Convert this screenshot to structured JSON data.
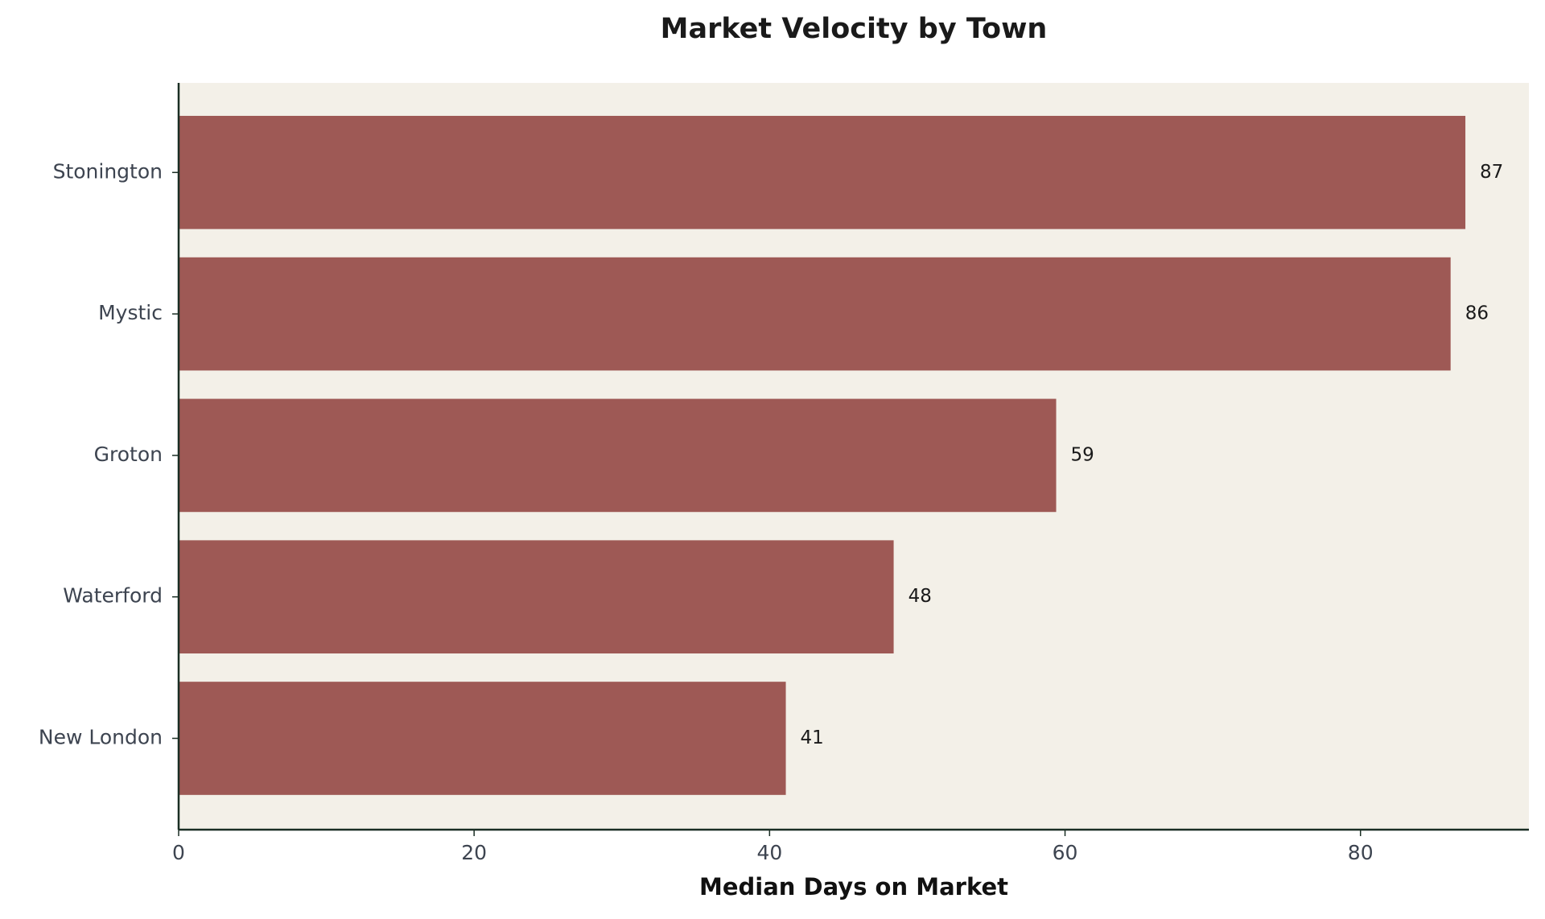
{
  "chart_data": {
    "type": "barh",
    "title": "Market Velocity by Town",
    "xlabel": "Median Days on Market",
    "categories": [
      "Stonington",
      "Mystic",
      "Groton",
      "Waterford",
      "New London"
    ],
    "values": [
      87.1,
      86.1,
      59.4,
      48.4,
      41.1
    ],
    "value_labels": [
      "87",
      "86",
      "59",
      "48",
      "41"
    ],
    "color": "#9e5955",
    "xlim": [
      0,
      91.4
    ],
    "xticks": [
      0,
      20,
      40,
      60,
      80
    ]
  }
}
